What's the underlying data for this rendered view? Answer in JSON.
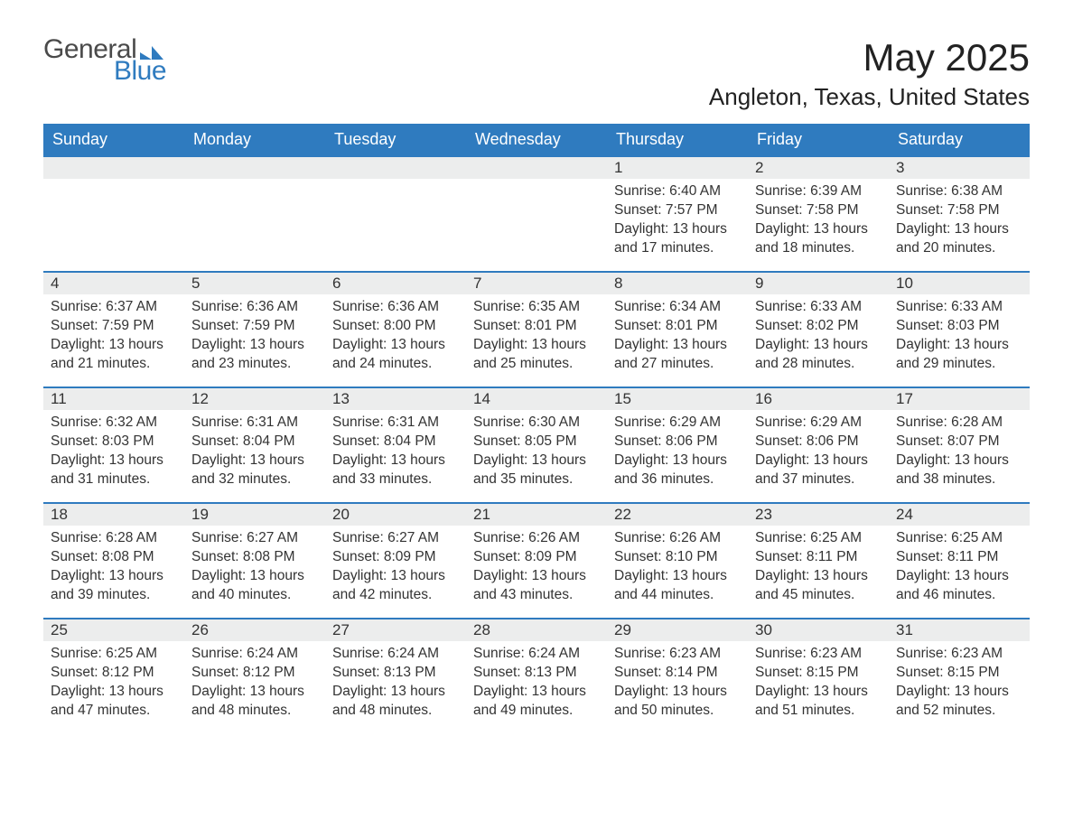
{
  "brand": {
    "word1": "General",
    "word2": "Blue",
    "text_color": "#4a4a4a",
    "accent_color": "#2f7bbf"
  },
  "title": "May 2025",
  "location": "Angleton, Texas, United States",
  "colors": {
    "header_bg": "#2f7bbf",
    "header_text": "#ffffff",
    "daynum_bg": "#eceded",
    "border": "#2f7bbf",
    "body_text": "#333333",
    "page_bg": "#ffffff"
  },
  "weekdays": [
    "Sunday",
    "Monday",
    "Tuesday",
    "Wednesday",
    "Thursday",
    "Friday",
    "Saturday"
  ],
  "weeks": [
    [
      {
        "empty": true
      },
      {
        "empty": true
      },
      {
        "empty": true
      },
      {
        "empty": true
      },
      {
        "day": "1",
        "sunrise": "Sunrise: 6:40 AM",
        "sunset": "Sunset: 7:57 PM",
        "daylight": "Daylight: 13 hours and 17 minutes."
      },
      {
        "day": "2",
        "sunrise": "Sunrise: 6:39 AM",
        "sunset": "Sunset: 7:58 PM",
        "daylight": "Daylight: 13 hours and 18 minutes."
      },
      {
        "day": "3",
        "sunrise": "Sunrise: 6:38 AM",
        "sunset": "Sunset: 7:58 PM",
        "daylight": "Daylight: 13 hours and 20 minutes."
      }
    ],
    [
      {
        "day": "4",
        "sunrise": "Sunrise: 6:37 AM",
        "sunset": "Sunset: 7:59 PM",
        "daylight": "Daylight: 13 hours and 21 minutes."
      },
      {
        "day": "5",
        "sunrise": "Sunrise: 6:36 AM",
        "sunset": "Sunset: 7:59 PM",
        "daylight": "Daylight: 13 hours and 23 minutes."
      },
      {
        "day": "6",
        "sunrise": "Sunrise: 6:36 AM",
        "sunset": "Sunset: 8:00 PM",
        "daylight": "Daylight: 13 hours and 24 minutes."
      },
      {
        "day": "7",
        "sunrise": "Sunrise: 6:35 AM",
        "sunset": "Sunset: 8:01 PM",
        "daylight": "Daylight: 13 hours and 25 minutes."
      },
      {
        "day": "8",
        "sunrise": "Sunrise: 6:34 AM",
        "sunset": "Sunset: 8:01 PM",
        "daylight": "Daylight: 13 hours and 27 minutes."
      },
      {
        "day": "9",
        "sunrise": "Sunrise: 6:33 AM",
        "sunset": "Sunset: 8:02 PM",
        "daylight": "Daylight: 13 hours and 28 minutes."
      },
      {
        "day": "10",
        "sunrise": "Sunrise: 6:33 AM",
        "sunset": "Sunset: 8:03 PM",
        "daylight": "Daylight: 13 hours and 29 minutes."
      }
    ],
    [
      {
        "day": "11",
        "sunrise": "Sunrise: 6:32 AM",
        "sunset": "Sunset: 8:03 PM",
        "daylight": "Daylight: 13 hours and 31 minutes."
      },
      {
        "day": "12",
        "sunrise": "Sunrise: 6:31 AM",
        "sunset": "Sunset: 8:04 PM",
        "daylight": "Daylight: 13 hours and 32 minutes."
      },
      {
        "day": "13",
        "sunrise": "Sunrise: 6:31 AM",
        "sunset": "Sunset: 8:04 PM",
        "daylight": "Daylight: 13 hours and 33 minutes."
      },
      {
        "day": "14",
        "sunrise": "Sunrise: 6:30 AM",
        "sunset": "Sunset: 8:05 PM",
        "daylight": "Daylight: 13 hours and 35 minutes."
      },
      {
        "day": "15",
        "sunrise": "Sunrise: 6:29 AM",
        "sunset": "Sunset: 8:06 PM",
        "daylight": "Daylight: 13 hours and 36 minutes."
      },
      {
        "day": "16",
        "sunrise": "Sunrise: 6:29 AM",
        "sunset": "Sunset: 8:06 PM",
        "daylight": "Daylight: 13 hours and 37 minutes."
      },
      {
        "day": "17",
        "sunrise": "Sunrise: 6:28 AM",
        "sunset": "Sunset: 8:07 PM",
        "daylight": "Daylight: 13 hours and 38 minutes."
      }
    ],
    [
      {
        "day": "18",
        "sunrise": "Sunrise: 6:28 AM",
        "sunset": "Sunset: 8:08 PM",
        "daylight": "Daylight: 13 hours and 39 minutes."
      },
      {
        "day": "19",
        "sunrise": "Sunrise: 6:27 AM",
        "sunset": "Sunset: 8:08 PM",
        "daylight": "Daylight: 13 hours and 40 minutes."
      },
      {
        "day": "20",
        "sunrise": "Sunrise: 6:27 AM",
        "sunset": "Sunset: 8:09 PM",
        "daylight": "Daylight: 13 hours and 42 minutes."
      },
      {
        "day": "21",
        "sunrise": "Sunrise: 6:26 AM",
        "sunset": "Sunset: 8:09 PM",
        "daylight": "Daylight: 13 hours and 43 minutes."
      },
      {
        "day": "22",
        "sunrise": "Sunrise: 6:26 AM",
        "sunset": "Sunset: 8:10 PM",
        "daylight": "Daylight: 13 hours and 44 minutes."
      },
      {
        "day": "23",
        "sunrise": "Sunrise: 6:25 AM",
        "sunset": "Sunset: 8:11 PM",
        "daylight": "Daylight: 13 hours and 45 minutes."
      },
      {
        "day": "24",
        "sunrise": "Sunrise: 6:25 AM",
        "sunset": "Sunset: 8:11 PM",
        "daylight": "Daylight: 13 hours and 46 minutes."
      }
    ],
    [
      {
        "day": "25",
        "sunrise": "Sunrise: 6:25 AM",
        "sunset": "Sunset: 8:12 PM",
        "daylight": "Daylight: 13 hours and 47 minutes."
      },
      {
        "day": "26",
        "sunrise": "Sunrise: 6:24 AM",
        "sunset": "Sunset: 8:12 PM",
        "daylight": "Daylight: 13 hours and 48 minutes."
      },
      {
        "day": "27",
        "sunrise": "Sunrise: 6:24 AM",
        "sunset": "Sunset: 8:13 PM",
        "daylight": "Daylight: 13 hours and 48 minutes."
      },
      {
        "day": "28",
        "sunrise": "Sunrise: 6:24 AM",
        "sunset": "Sunset: 8:13 PM",
        "daylight": "Daylight: 13 hours and 49 minutes."
      },
      {
        "day": "29",
        "sunrise": "Sunrise: 6:23 AM",
        "sunset": "Sunset: 8:14 PM",
        "daylight": "Daylight: 13 hours and 50 minutes."
      },
      {
        "day": "30",
        "sunrise": "Sunrise: 6:23 AM",
        "sunset": "Sunset: 8:15 PM",
        "daylight": "Daylight: 13 hours and 51 minutes."
      },
      {
        "day": "31",
        "sunrise": "Sunrise: 6:23 AM",
        "sunset": "Sunset: 8:15 PM",
        "daylight": "Daylight: 13 hours and 52 minutes."
      }
    ]
  ]
}
